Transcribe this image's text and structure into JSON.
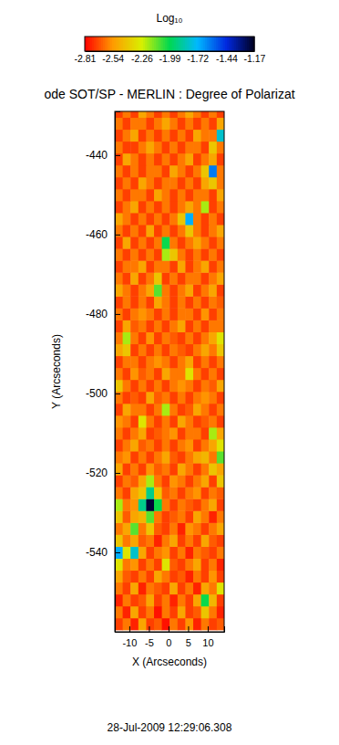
{
  "chart_data": {
    "type": "heatmap",
    "title": "ode SOT/SP - MERLIN : Degree of Polarizat",
    "annotations": [
      "28-Jul-2009 12:29:06.308"
    ],
    "x_label": "X (Arcseconds)",
    "y_label": "Y (Arcseconds)",
    "xlim": [
      -13.7,
      14.2
    ],
    "ylim": [
      -560,
      -429
    ],
    "xticks": [
      -10,
      -5,
      0,
      5,
      10
    ],
    "yticks": [
      -540,
      -520,
      -500,
      -480,
      -460,
      -440
    ],
    "x": [
      -12.7,
      -10.7,
      -8.7,
      -6.7,
      -4.7,
      -2.7,
      -0.7,
      1.3,
      3.3,
      5.3,
      7.3,
      9.3,
      11.3,
      13.3
    ],
    "y": [
      -558,
      -555,
      -552,
      -549,
      -546,
      -543,
      -540,
      -537,
      -534,
      -531,
      -528,
      -525,
      -522,
      -519,
      -516,
      -513,
      -510,
      -507,
      -504,
      -501,
      -498,
      -495,
      -492,
      -489,
      -486,
      -483,
      -480,
      -477,
      -474,
      -471,
      -468,
      -465,
      -462,
      -459,
      -456,
      -453,
      -450,
      -447,
      -444,
      -441,
      -438,
      -435,
      -432,
      -429
    ],
    "z": [
      [
        -2.7,
        -2.6,
        -2.75,
        -2.5,
        -2.7,
        -2.65,
        -2.78,
        -2.6,
        -2.7,
        -2.55,
        -2.75,
        -2.6,
        -2.7,
        -2.65
      ],
      [
        -2.6,
        -2.75,
        -2.5,
        -2.7,
        -2.6,
        -2.78,
        -2.6,
        -2.7,
        -2.5,
        -2.7,
        -2.65,
        -2.4,
        -2.6,
        -2.75
      ],
      [
        -2.75,
        -2.6,
        -2.7,
        -2.65,
        -2.5,
        -2.7,
        -2.6,
        -2.75,
        -2.6,
        -2.7,
        -2.5,
        -2.0,
        -2.45,
        -2.7
      ],
      [
        -2.6,
        -2.7,
        -2.5,
        -2.75,
        -2.6,
        -2.65,
        -2.7,
        -2.5,
        -2.7,
        -2.6,
        -2.75,
        -2.5,
        -2.6,
        -2.3
      ],
      [
        -2.5,
        -2.65,
        -2.7,
        -2.6,
        -2.7,
        -2.5,
        -2.6,
        -2.7,
        -2.65,
        -2.75,
        -2.6,
        -2.7,
        -2.55,
        -2.7
      ],
      [
        -2.3,
        -2.6,
        -2.55,
        -2.7,
        -2.6,
        -2.7,
        -2.3,
        -2.65,
        -2.7,
        -2.6,
        -2.5,
        -2.7,
        -2.6,
        -2.75
      ],
      [
        -1.7,
        -2.3,
        -1.8,
        -2.5,
        -2.7,
        -2.6,
        -2.55,
        -2.7,
        -2.6,
        -2.75,
        -2.6,
        -2.65,
        -2.7,
        -2.6
      ],
      [
        -2.4,
        -2.6,
        -2.5,
        -2.65,
        -2.6,
        -2.75,
        -2.6,
        -2.5,
        -2.7,
        -2.6,
        -2.7,
        -2.5,
        -2.65,
        -2.7
      ],
      [
        -2.6,
        -2.5,
        -2.1,
        -2.6,
        -2.4,
        -2.65,
        -2.7,
        -2.6,
        -2.75,
        -2.55,
        -2.6,
        -2.7,
        -2.6,
        -2.5
      ],
      [
        -2.4,
        -2.65,
        -2.5,
        -2.45,
        -2.1,
        -2.6,
        -2.7,
        -2.65,
        -2.6,
        -2.7,
        -2.5,
        -2.6,
        -2.75,
        -2.6
      ],
      [
        -2.2,
        -2.6,
        -2.55,
        -1.9,
        -1.2,
        -2.0,
        -2.6,
        -2.7,
        -2.6,
        -2.65,
        -2.7,
        -2.6,
        -2.5,
        -2.7
      ],
      [
        -2.6,
        -2.7,
        -2.5,
        -2.4,
        -1.9,
        -2.4,
        -2.65,
        -2.6,
        -2.7,
        -2.6,
        -2.55,
        -2.7,
        -2.6,
        -2.65
      ],
      [
        -2.7,
        -2.6,
        -2.65,
        -2.5,
        -2.2,
        -2.6,
        -2.7,
        -2.55,
        -2.6,
        -2.7,
        -2.6,
        -2.5,
        -2.7,
        -2.4
      ],
      [
        -2.5,
        -2.7,
        -2.6,
        -2.7,
        -2.55,
        -2.65,
        -2.6,
        -2.7,
        -2.5,
        -2.6,
        -2.7,
        -2.6,
        -2.4,
        -2.5
      ],
      [
        -2.6,
        -2.55,
        -2.7,
        -2.6,
        -2.7,
        -2.6,
        -2.5,
        -2.65,
        -2.7,
        -2.6,
        -2.5,
        -2.45,
        -2.6,
        -2.1
      ],
      [
        -2.7,
        -2.6,
        -2.5,
        -2.65,
        -2.6,
        -2.7,
        -2.6,
        -2.7,
        -2.6,
        -2.55,
        -2.7,
        -2.6,
        -2.5,
        -2.3
      ],
      [
        -2.6,
        -2.7,
        -2.6,
        -2.5,
        -2.7,
        -2.65,
        -2.6,
        -2.55,
        -2.7,
        -2.6,
        -2.6,
        -2.7,
        -2.2,
        -2.5
      ],
      [
        -2.55,
        -2.6,
        -2.7,
        -2.3,
        -2.6,
        -2.7,
        -2.6,
        -2.7,
        -2.5,
        -2.6,
        -2.7,
        -2.65,
        -2.6,
        -2.7
      ],
      [
        -2.7,
        -2.5,
        -2.6,
        -2.6,
        -2.7,
        -2.6,
        -2.2,
        -2.6,
        -2.7,
        -2.65,
        -2.5,
        -2.6,
        -2.7,
        -2.6
      ],
      [
        -2.6,
        -2.7,
        -2.65,
        -2.7,
        -2.5,
        -2.65,
        -2.6,
        -2.7,
        -2.6,
        -2.7,
        -2.6,
        -2.55,
        -2.6,
        -2.7
      ],
      [
        -2.4,
        -2.6,
        -2.7,
        -2.6,
        -2.7,
        -2.6,
        -2.7,
        -2.6,
        -2.55,
        -2.6,
        -2.7,
        -2.6,
        -2.65,
        -2.5
      ],
      [
        -2.6,
        -2.7,
        -2.55,
        -2.65,
        -2.6,
        -2.7,
        -2.5,
        -2.6,
        -2.6,
        -2.3,
        -2.6,
        -2.7,
        -2.6,
        -2.7
      ],
      [
        -2.7,
        -2.6,
        -2.6,
        -2.7,
        -2.6,
        -2.55,
        -2.6,
        -2.7,
        -2.6,
        -2.5,
        -2.7,
        -2.6,
        -2.7,
        -2.6
      ],
      [
        -2.5,
        -2.4,
        -2.7,
        -2.6,
        -2.7,
        -2.6,
        -2.7,
        -2.6,
        -2.65,
        -2.7,
        -2.6,
        -2.5,
        -2.6,
        -2.4
      ],
      [
        -2.6,
        -2.2,
        -2.6,
        -2.7,
        -2.55,
        -2.7,
        -2.6,
        -2.65,
        -2.7,
        -2.6,
        -2.7,
        -2.6,
        -2.5,
        -2.3
      ],
      [
        -2.7,
        -2.5,
        -2.65,
        -2.6,
        -2.7,
        -2.6,
        -2.7,
        -2.6,
        -2.5,
        -2.7,
        -2.6,
        -2.7,
        -2.6,
        -2.6
      ],
      [
        -2.6,
        -2.7,
        -2.6,
        -2.55,
        -2.6,
        -2.7,
        -2.6,
        -2.7,
        -2.6,
        -2.6,
        -2.7,
        -2.55,
        -2.7,
        -2.6
      ],
      [
        -2.7,
        -2.6,
        -2.7,
        -2.6,
        -2.7,
        -2.5,
        -2.6,
        -2.7,
        -2.6,
        -2.7,
        -2.6,
        -2.7,
        -2.6,
        -2.65
      ],
      [
        -2.5,
        -2.6,
        -2.7,
        -2.6,
        -2.5,
        -2.1,
        -2.6,
        -2.7,
        -2.6,
        -2.5,
        -2.7,
        -2.6,
        -2.5,
        -2.7
      ],
      [
        -2.6,
        -2.7,
        -2.5,
        -2.7,
        -2.6,
        -2.4,
        -2.7,
        -2.6,
        -2.7,
        -2.6,
        -2.6,
        -2.7,
        -2.6,
        -2.5
      ],
      [
        -2.7,
        -2.6,
        -2.6,
        -2.5,
        -2.7,
        -2.6,
        -2.6,
        -2.7,
        -2.5,
        -2.7,
        -2.6,
        -2.5,
        -2.7,
        -2.6
      ],
      [
        -2.6,
        -2.7,
        -2.6,
        -2.7,
        -2.6,
        -2.7,
        -2.2,
        -2.4,
        -2.6,
        -2.7,
        -2.6,
        -2.7,
        -2.6,
        -2.7
      ],
      [
        -2.7,
        -2.5,
        -2.7,
        -2.6,
        -2.7,
        -2.6,
        -2.0,
        -2.6,
        -2.7,
        -2.6,
        -2.5,
        -2.6,
        -2.7,
        -2.6
      ],
      [
        -2.6,
        -2.7,
        -2.6,
        -2.7,
        -2.5,
        -2.7,
        -2.6,
        -2.7,
        -2.6,
        -2.4,
        -2.6,
        -2.7,
        -2.6,
        -2.5
      ],
      [
        -2.5,
        -2.6,
        -2.7,
        -2.6,
        -2.7,
        -2.6,
        -2.7,
        -2.6,
        -2.4,
        -1.7,
        -2.6,
        -2.7,
        -2.6,
        -2.7
      ],
      [
        -2.7,
        -2.6,
        -2.5,
        -2.7,
        -2.6,
        -2.7,
        -2.6,
        -2.7,
        -2.6,
        -2.5,
        -2.6,
        -2.2,
        -2.7,
        -2.6
      ],
      [
        -2.6,
        -2.7,
        -2.6,
        -2.6,
        -2.7,
        -2.5,
        -2.6,
        -2.7,
        -2.6,
        -2.7,
        -2.6,
        -2.6,
        -2.7,
        -2.5
      ],
      [
        -2.7,
        -2.6,
        -2.7,
        -2.5,
        -2.6,
        -2.7,
        -2.6,
        -2.6,
        -2.7,
        -2.6,
        -2.7,
        -2.5,
        -2.4,
        -2.6
      ],
      [
        -2.6,
        -2.7,
        -2.6,
        -2.7,
        -2.6,
        -2.6,
        -2.7,
        -2.5,
        -2.6,
        -2.7,
        -2.6,
        -2.4,
        -1.6,
        -2.6
      ],
      [
        -2.7,
        -2.5,
        -2.6,
        -2.7,
        -2.6,
        -2.7,
        -2.6,
        -2.7,
        -2.6,
        -2.5,
        -2.7,
        -2.6,
        -2.5,
        -2.7
      ],
      [
        -2.6,
        -2.7,
        -2.7,
        -2.6,
        -2.5,
        -2.6,
        -2.7,
        -2.6,
        -2.7,
        -2.6,
        -2.6,
        -2.7,
        -2.4,
        -2.6
      ],
      [
        -2.7,
        -2.6,
        -2.5,
        -2.7,
        -2.6,
        -2.7,
        -2.6,
        -2.7,
        -2.6,
        -2.7,
        -2.5,
        -2.6,
        -2.6,
        -1.8
      ],
      [
        -2.6,
        -2.7,
        -2.6,
        -2.6,
        -2.7,
        -2.6,
        -2.5,
        -2.6,
        -2.7,
        -2.6,
        -2.7,
        -2.6,
        -2.7,
        -2.5
      ],
      [
        -2.7,
        -2.6,
        -2.7,
        -2.5,
        -2.6,
        -2.7,
        -2.6,
        -2.7,
        -2.6,
        -2.5,
        -2.6,
        -2.7,
        -2.6,
        -2.7
      ]
    ],
    "colorbar": {
      "label": "Log₁₀",
      "range": [
        -2.81,
        -1.17
      ],
      "ticks": [
        -2.81,
        -2.54,
        -2.26,
        -1.99,
        -1.72,
        -1.44,
        -1.17
      ]
    }
  }
}
